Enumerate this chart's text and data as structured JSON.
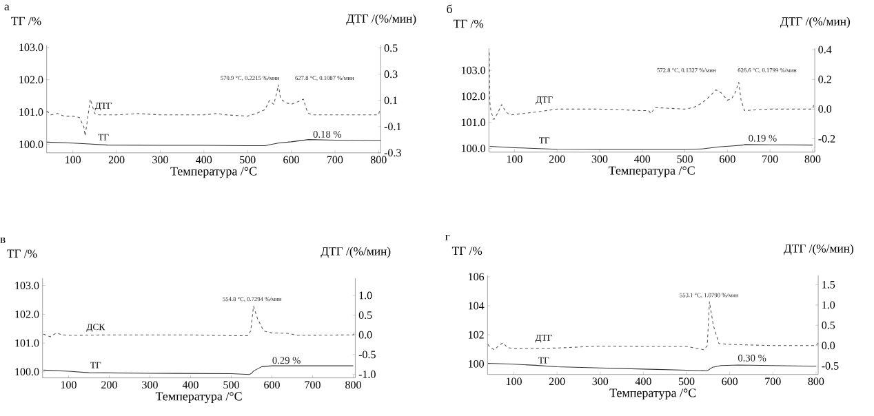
{
  "chart_data": [
    {
      "type": "line",
      "title": "а",
      "xlabel": "Температура /°C",
      "ylabel": "ТГ /%",
      "y2label": "ДТГ /(%/мин)",
      "xlim": [
        40,
        805
      ],
      "xticks": [
        100,
        200,
        300,
        400,
        500,
        600,
        700,
        800
      ],
      "ylim": [
        99.74,
        103.06
      ],
      "yticks": [
        {
          "value": 100,
          "label": "100.0"
        },
        {
          "value": 101,
          "label": "101.0"
        },
        {
          "value": 102,
          "label": "102.0"
        },
        {
          "value": 103,
          "label": "103.0"
        }
      ],
      "y2lim": [
        -0.3,
        0.52
      ],
      "y2ticks": [
        -0.3,
        -0.1,
        0.1,
        0.3,
        0.5
      ],
      "series": [
        {
          "name": "ТГ",
          "color": "#333333",
          "line_style": "solid",
          "x": [
            40,
            100,
            130,
            180,
            300,
            400,
            500,
            540,
            570,
            600,
            640,
            700,
            800,
            805
          ],
          "values": [
            100.07,
            100.04,
            100.02,
            99.98,
            99.97,
            99.97,
            99.96,
            99.96,
            100.04,
            100.08,
            100.15,
            100.13,
            100.12,
            100.12
          ]
        },
        {
          "name": "ДТГ",
          "color": "#555555",
          "line_style": "dashed",
          "axis": "y2",
          "x": [
            40,
            50,
            65,
            80,
            100,
            115,
            125,
            128,
            132,
            140,
            150,
            160,
            200,
            250,
            300,
            350,
            400,
            430,
            450,
            500,
            520,
            540,
            550,
            560,
            566,
            570.9,
            575,
            580,
            590,
            600,
            615,
            627.8,
            635,
            640,
            650,
            700,
            750,
            800,
            803
          ],
          "values": [
            0.02,
            -0.01,
            0.0,
            -0.02,
            -0.02,
            -0.03,
            -0.1,
            -0.17,
            -0.08,
            0.11,
            0.0,
            -0.01,
            -0.01,
            0.0,
            -0.01,
            -0.01,
            -0.01,
            0.0,
            -0.01,
            -0.02,
            0.0,
            0.03,
            0.1,
            0.07,
            0.15,
            0.22,
            0.12,
            0.1,
            0.08,
            0.07,
            0.09,
            0.11,
            0.03,
            0.0,
            -0.01,
            -0.01,
            -0.01,
            -0.01,
            0.03
          ]
        }
      ],
      "annotations": [
        "570.9 °C, 0.2215 %/мин",
        "627.8 °C, 0.1087 %/мин",
        "0.18 %"
      ]
    },
    {
      "type": "line",
      "title": "б",
      "xlabel": "Температура /°C",
      "ylabel": "ТГ /%",
      "y2label": "ДТГ /(%/мин)",
      "xlim": [
        40,
        805
      ],
      "xticks": [
        100,
        200,
        300,
        400,
        500,
        600,
        700,
        800
      ],
      "ylim": [
        99.86,
        103.85
      ],
      "yticks": [
        {
          "value": 100,
          "label": "100.0"
        },
        {
          "value": 101,
          "label": "101.0"
        },
        {
          "value": 102,
          "label": "102.0"
        },
        {
          "value": 103,
          "label": "103.0"
        }
      ],
      "y2lim": [
        -0.29,
        0.41
      ],
      "y2ticks": [
        -0.2,
        {
          "value": 0,
          "label": "0.0"
        },
        0.2,
        0.4
      ],
      "series": [
        {
          "name": "ТГ",
          "color": "#333333",
          "line_style": "solid",
          "x": [
            42,
            100,
            200,
            300,
            500,
            540,
            580,
            620,
            636,
            640,
            700,
            800
          ],
          "values": [
            100.08,
            100.03,
            99.97,
            99.96,
            99.96,
            99.98,
            100.06,
            100.11,
            100.13,
            100.15,
            100.14,
            100.13
          ]
        },
        {
          "name": "ДТГ",
          "color": "#555555",
          "line_style": "dashed",
          "axis": "y2",
          "x": [
            41,
            42,
            45,
            52,
            60,
            70,
            80,
            90,
            150,
            200,
            300,
            400,
            415,
            420,
            430,
            500,
            520,
            540,
            560,
            572.8,
            585,
            600,
            610,
            618,
            626.6,
            632,
            640,
            700,
            800,
            803
          ],
          "values": [
            0.38,
            0.05,
            -0.02,
            -0.07,
            -0.03,
            0.03,
            -0.02,
            -0.04,
            -0.02,
            0.0,
            0.0,
            -0.01,
            -0.01,
            -0.03,
            0.01,
            0.0,
            0.01,
            0.04,
            0.09,
            0.13,
            0.11,
            0.06,
            0.07,
            0.11,
            0.18,
            0.06,
            -0.01,
            0.0,
            0.0,
            0.03
          ]
        }
      ],
      "annotations": [
        "572.8 °C, 0.1327 %/мин",
        "626.6 °C, 0.1799 %/мин",
        "0.19 %"
      ]
    },
    {
      "type": "line",
      "title": "в",
      "xlabel": "Температура /°C",
      "ylabel": "ТГ /%",
      "y2label": "ДТГ /(%/мин)",
      "xlim": [
        36,
        805
      ],
      "xticks": [
        100,
        200,
        300,
        400,
        500,
        600,
        700,
        800
      ],
      "ylim": [
        99.79,
        103.26
      ],
      "yticks": [
        {
          "value": 100,
          "label": "100.0"
        },
        {
          "value": 101,
          "label": "101.0"
        },
        {
          "value": 102,
          "label": "102.0"
        },
        {
          "value": 103,
          "label": "103.0"
        }
      ],
      "y2lim": [
        -1.09,
        1.44
      ],
      "y2ticks": [
        {
          "value": -1,
          "label": "-1.0"
        },
        -0.5,
        {
          "value": 0,
          "label": "0.0"
        },
        0.5,
        {
          "value": 1,
          "label": "1.0"
        }
      ],
      "series": [
        {
          "name": "ТГ",
          "color": "#333333",
          "line_style": "solid",
          "x": [
            38,
            100,
            150,
            300,
            500,
            545,
            550,
            555,
            575,
            600,
            700,
            800
          ],
          "values": [
            100.06,
            100.02,
            99.97,
            99.95,
            99.94,
            99.91,
            99.95,
            100.03,
            100.18,
            100.21,
            100.21,
            100.21
          ]
        },
        {
          "name": "ДСК",
          "color": "#555555",
          "line_style": "dashed",
          "axis": "y2",
          "x": [
            38,
            55,
            70,
            85,
            100,
            200,
            300,
            400,
            500,
            540,
            548,
            554.8,
            565,
            580,
            600,
            640,
            660,
            800,
            805
          ],
          "values": [
            0.02,
            -0.05,
            0.05,
            0.0,
            -0.01,
            0.0,
            0.0,
            0.0,
            -0.02,
            -0.02,
            0.1,
            0.73,
            0.4,
            0.1,
            0.05,
            0.04,
            -0.01,
            0.0,
            0.08
          ]
        }
      ],
      "annotations": [
        "554.8 °C, 0.7294 %/мин",
        "0.29 %"
      ]
    },
    {
      "type": "line",
      "title": "г",
      "xlabel": "Температура /°C",
      "ylabel": "ТГ /%",
      "y2label": "ДТГ /(%/мин)",
      "xlim": [
        39,
        805
      ],
      "xticks": [
        100,
        200,
        300,
        400,
        500,
        600,
        700,
        800
      ],
      "ylim": [
        99.27,
        106.1
      ],
      "yticks": [
        100,
        102,
        104,
        106
      ],
      "y2lim": [
        -0.71,
        1.73
      ],
      "y2ticks": [
        -0.5,
        {
          "value": 0,
          "label": "0.0"
        },
        0.5,
        {
          "value": 1,
          "label": "1.0"
        },
        1.5
      ],
      "series": [
        {
          "name": "ТГ",
          "color": "#333333",
          "line_style": "solid",
          "x": [
            40,
            100,
            150,
            200,
            300,
            400,
            500,
            548,
            560,
            580,
            620,
            800
          ],
          "values": [
            100.04,
            99.98,
            99.9,
            99.8,
            99.72,
            99.64,
            99.56,
            99.52,
            99.76,
            99.88,
            99.92,
            99.84
          ]
        },
        {
          "name": "ДТГ",
          "color": "#555555",
          "line_style": "dashed",
          "axis": "y2",
          "x": [
            40,
            45,
            55,
            65,
            75,
            85,
            100,
            200,
            300,
            400,
            500,
            540,
            548,
            553.1,
            562,
            575,
            600,
            700,
            800,
            805
          ],
          "values": [
            0.03,
            -0.05,
            -0.1,
            0.0,
            0.07,
            -0.05,
            -0.07,
            -0.06,
            -0.01,
            -0.02,
            -0.02,
            -0.1,
            0.0,
            1.08,
            0.5,
            0.05,
            0.03,
            0.0,
            0.0,
            0.07
          ]
        }
      ],
      "annotations": [
        "553.1 °C, 1.0790 %/мин",
        "0.30 %"
      ]
    }
  ]
}
